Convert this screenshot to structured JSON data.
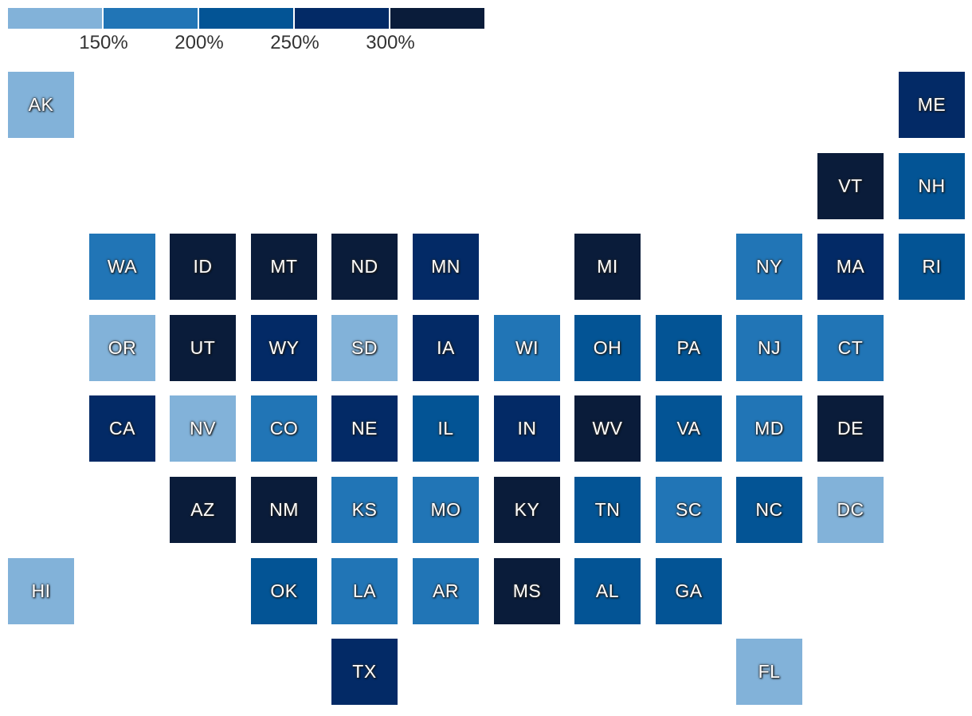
{
  "legend": {
    "colors": [
      "#82b2d9",
      "#2175b6",
      "#035495",
      "#032a66",
      "#0a1c3a"
    ],
    "labels": [
      "150%",
      "200%",
      "250%",
      "300%"
    ]
  },
  "chart_data": {
    "type": "tile-grid-map",
    "bins": [
      "<150%",
      "150–200%",
      "200–250%",
      "250–300%",
      ">300%"
    ],
    "states": [
      {
        "abbr": "AK",
        "col": 0,
        "row": 0,
        "bin": 0
      },
      {
        "abbr": "ME",
        "col": 11,
        "row": 0,
        "bin": 3
      },
      {
        "abbr": "VT",
        "col": 10,
        "row": 1,
        "bin": 4
      },
      {
        "abbr": "NH",
        "col": 11,
        "row": 1,
        "bin": 2
      },
      {
        "abbr": "WA",
        "col": 1,
        "row": 2,
        "bin": 1
      },
      {
        "abbr": "ID",
        "col": 2,
        "row": 2,
        "bin": 4
      },
      {
        "abbr": "MT",
        "col": 3,
        "row": 2,
        "bin": 4
      },
      {
        "abbr": "ND",
        "col": 4,
        "row": 2,
        "bin": 4
      },
      {
        "abbr": "MN",
        "col": 5,
        "row": 2,
        "bin": 3
      },
      {
        "abbr": "MI",
        "col": 7,
        "row": 2,
        "bin": 4
      },
      {
        "abbr": "NY",
        "col": 9,
        "row": 2,
        "bin": 1
      },
      {
        "abbr": "MA",
        "col": 10,
        "row": 2,
        "bin": 3
      },
      {
        "abbr": "RI",
        "col": 11,
        "row": 2,
        "bin": 2
      },
      {
        "abbr": "OR",
        "col": 1,
        "row": 3,
        "bin": 0
      },
      {
        "abbr": "UT",
        "col": 2,
        "row": 3,
        "bin": 4
      },
      {
        "abbr": "WY",
        "col": 3,
        "row": 3,
        "bin": 3
      },
      {
        "abbr": "SD",
        "col": 4,
        "row": 3,
        "bin": 0
      },
      {
        "abbr": "IA",
        "col": 5,
        "row": 3,
        "bin": 3
      },
      {
        "abbr": "WI",
        "col": 6,
        "row": 3,
        "bin": 1
      },
      {
        "abbr": "OH",
        "col": 7,
        "row": 3,
        "bin": 2
      },
      {
        "abbr": "PA",
        "col": 8,
        "row": 3,
        "bin": 2
      },
      {
        "abbr": "NJ",
        "col": 9,
        "row": 3,
        "bin": 1
      },
      {
        "abbr": "CT",
        "col": 10,
        "row": 3,
        "bin": 1
      },
      {
        "abbr": "CA",
        "col": 1,
        "row": 4,
        "bin": 3
      },
      {
        "abbr": "NV",
        "col": 2,
        "row": 4,
        "bin": 0
      },
      {
        "abbr": "CO",
        "col": 3,
        "row": 4,
        "bin": 1
      },
      {
        "abbr": "NE",
        "col": 4,
        "row": 4,
        "bin": 3
      },
      {
        "abbr": "IL",
        "col": 5,
        "row": 4,
        "bin": 2
      },
      {
        "abbr": "IN",
        "col": 6,
        "row": 4,
        "bin": 3
      },
      {
        "abbr": "WV",
        "col": 7,
        "row": 4,
        "bin": 4
      },
      {
        "abbr": "VA",
        "col": 8,
        "row": 4,
        "bin": 2
      },
      {
        "abbr": "MD",
        "col": 9,
        "row": 4,
        "bin": 1
      },
      {
        "abbr": "DE",
        "col": 10,
        "row": 4,
        "bin": 4
      },
      {
        "abbr": "AZ",
        "col": 2,
        "row": 5,
        "bin": 4
      },
      {
        "abbr": "NM",
        "col": 3,
        "row": 5,
        "bin": 4
      },
      {
        "abbr": "KS",
        "col": 4,
        "row": 5,
        "bin": 1
      },
      {
        "abbr": "MO",
        "col": 5,
        "row": 5,
        "bin": 1
      },
      {
        "abbr": "KY",
        "col": 6,
        "row": 5,
        "bin": 4
      },
      {
        "abbr": "TN",
        "col": 7,
        "row": 5,
        "bin": 2
      },
      {
        "abbr": "SC",
        "col": 8,
        "row": 5,
        "bin": 1
      },
      {
        "abbr": "NC",
        "col": 9,
        "row": 5,
        "bin": 2
      },
      {
        "abbr": "DC",
        "col": 10,
        "row": 5,
        "bin": 0
      },
      {
        "abbr": "HI",
        "col": 0,
        "row": 6,
        "bin": 0
      },
      {
        "abbr": "OK",
        "col": 3,
        "row": 6,
        "bin": 2
      },
      {
        "abbr": "LA",
        "col": 4,
        "row": 6,
        "bin": 1
      },
      {
        "abbr": "AR",
        "col": 5,
        "row": 6,
        "bin": 1
      },
      {
        "abbr": "MS",
        "col": 6,
        "row": 6,
        "bin": 4
      },
      {
        "abbr": "AL",
        "col": 7,
        "row": 6,
        "bin": 2
      },
      {
        "abbr": "GA",
        "col": 8,
        "row": 6,
        "bin": 2
      },
      {
        "abbr": "TX",
        "col": 4,
        "row": 7,
        "bin": 3
      },
      {
        "abbr": "FL",
        "col": 9,
        "row": 7,
        "bin": 0
      }
    ]
  }
}
